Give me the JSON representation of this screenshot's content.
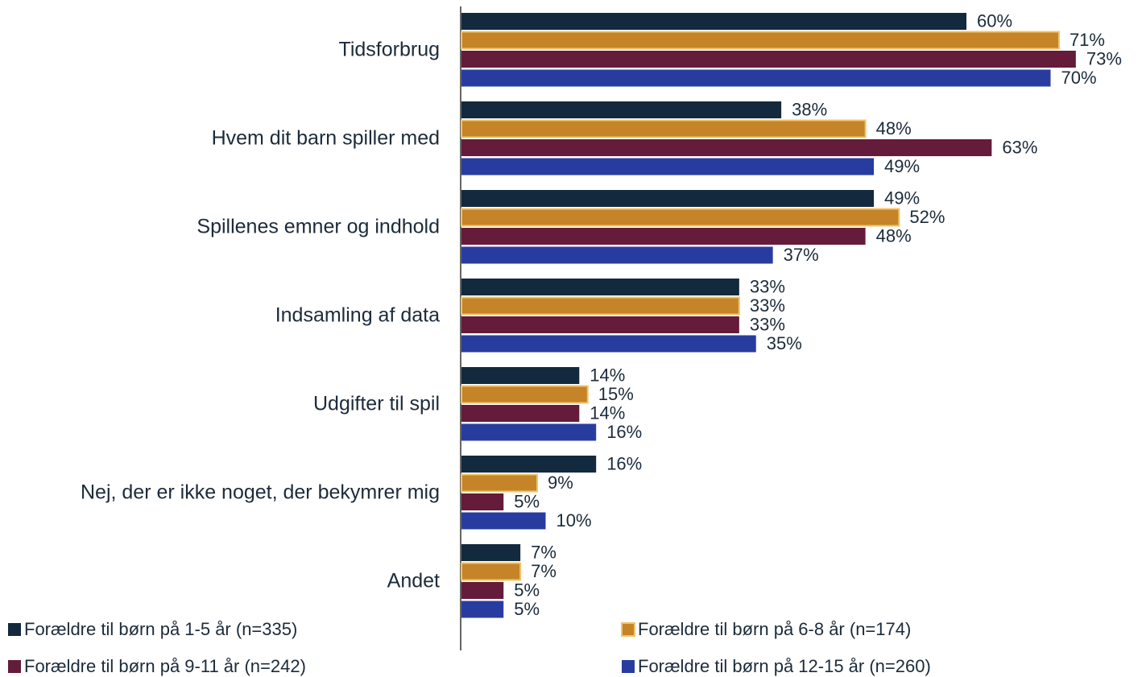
{
  "chart_data": {
    "type": "barh",
    "categories": [
      "Tidsforbrug",
      "Hvem dit barn spiller med",
      "Spillenes emner og indhold",
      "Indsamling af data",
      "Udgifter til spil",
      "Nej, der er ikke noget, der bekymrer mig",
      "Andet"
    ],
    "series": [
      {
        "name": "Forældre til børn på 1-5 år (n=335)",
        "color": "#13293d",
        "values": [
          60,
          38,
          49,
          33,
          14,
          16,
          7
        ],
        "value_labels": [
          "60%",
          "38%",
          "49%",
          "33%",
          "14%",
          "16%",
          "7%"
        ]
      },
      {
        "name": "Forældre til børn på 6-8 år (n=174)",
        "color": "#c58427",
        "edgecolor": "#f2c46e",
        "values": [
          71,
          48,
          52,
          33,
          15,
          9,
          7
        ],
        "value_labels": [
          "71%",
          "48%",
          "52%",
          "33%",
          "15%",
          "9%",
          "7%"
        ]
      },
      {
        "name": "Forældre til børn på 9-11 år (n=242)",
        "color": "#641c3a",
        "values": [
          73,
          63,
          48,
          33,
          14,
          5,
          5
        ],
        "value_labels": [
          "73%",
          "63%",
          "48%",
          "33%",
          "14%",
          "5%",
          "5%"
        ]
      },
      {
        "name": "Forældre til børn på 12-15 år (n=260)",
        "color": "#283ca0",
        "values": [
          70,
          49,
          37,
          35,
          16,
          10,
          5
        ],
        "value_labels": [
          "70%",
          "49%",
          "37%",
          "35%",
          "16%",
          "10%",
          "5%"
        ]
      }
    ],
    "legend": "bottom"
  }
}
